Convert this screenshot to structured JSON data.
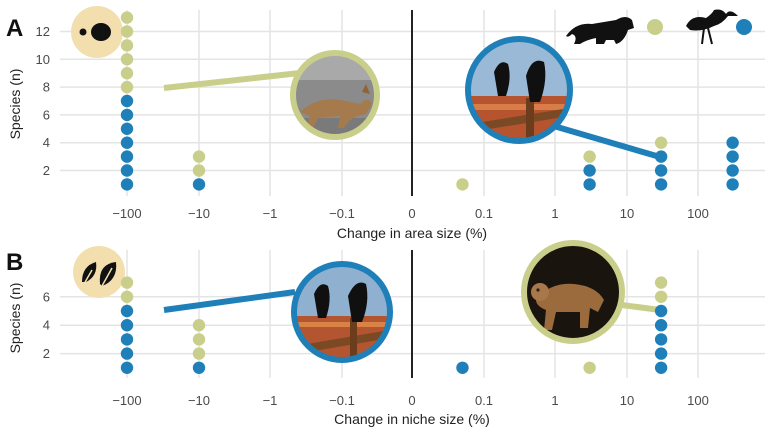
{
  "colors": {
    "mammal": "#c9cf8a",
    "bird": "#1f7fb8",
    "badge": "#f3dfae",
    "grid": "#e4e4e4"
  },
  "legend": {
    "mammal_icon": "puma-silhouette-icon",
    "bird_icon": "curlew-silhouette-icon"
  },
  "chart_data": [
    {
      "type": "scatter",
      "panel_label": "A",
      "badge_icon": "size-circles-icon",
      "xlabel": "Change in area size (%)",
      "ylabel": "Species (n)",
      "x_ticks": [
        "−100",
        "−10",
        "−1",
        "−0.1",
        "0",
        "0.1",
        "1",
        "10",
        "100"
      ],
      "y_ticks": [
        "2",
        "4",
        "6",
        "8",
        "10",
        "12"
      ],
      "ylim": [
        0,
        13.5
      ],
      "series": [
        {
          "group": "mammal",
          "stacks": [
            {
              "x": "−100",
              "count": 6,
              "base": 8
            },
            {
              "x": "−10",
              "count": 2,
              "base": 2
            },
            {
              "x": "0.05",
              "count": 1,
              "base": 1
            },
            {
              "x": "3",
              "count": 1,
              "base": 3
            },
            {
              "x": "30",
              "count": 1,
              "base": 4
            }
          ]
        },
        {
          "group": "bird",
          "stacks": [
            {
              "x": "−100",
              "count": 7,
              "base": 1
            },
            {
              "x": "−10",
              "count": 1,
              "base": 1
            },
            {
              "x": "3",
              "count": 2,
              "base": 1
            },
            {
              "x": "30",
              "count": 3,
              "base": 1
            },
            {
              "x": "300",
              "count": 4,
              "base": 1
            }
          ]
        }
      ],
      "photos": [
        {
          "subject": "coyote",
          "ring": "mammal",
          "linked_to": {
            "x": "−100",
            "y": 8
          }
        },
        {
          "subject": "ravens",
          "ring": "bird",
          "linked_to": {
            "x": "30",
            "y": 3
          }
        }
      ]
    },
    {
      "type": "scatter",
      "panel_label": "B",
      "badge_icon": "leaves-icon",
      "xlabel": "Change in niche size (%)",
      "ylabel": "Species (n)",
      "x_ticks": [
        "−100",
        "−10",
        "−1",
        "−0.1",
        "0",
        "0.1",
        "1",
        "10",
        "100"
      ],
      "y_ticks": [
        "2",
        "4",
        "6"
      ],
      "ylim": [
        0,
        7.6
      ],
      "series": [
        {
          "group": "mammal",
          "stacks": [
            {
              "x": "−100",
              "count": 2,
              "base": 6
            },
            {
              "x": "−10",
              "count": 3,
              "base": 2
            },
            {
              "x": "3",
              "count": 1,
              "base": 1
            },
            {
              "x": "30",
              "count": 2,
              "base": 6
            }
          ]
        },
        {
          "group": "bird",
          "stacks": [
            {
              "x": "−100",
              "count": 5,
              "base": 1
            },
            {
              "x": "−10",
              "count": 1,
              "base": 1
            },
            {
              "x": "0.05",
              "count": 1,
              "base": 1
            },
            {
              "x": "30",
              "count": 5,
              "base": 1
            }
          ]
        }
      ],
      "photos": [
        {
          "subject": "ravens",
          "ring": "bird",
          "linked_to": {
            "x": "−100",
            "y": 5
          }
        },
        {
          "subject": "mountain lion",
          "ring": "mammal",
          "linked_to": {
            "x": "30",
            "y": 5
          }
        }
      ]
    }
  ]
}
